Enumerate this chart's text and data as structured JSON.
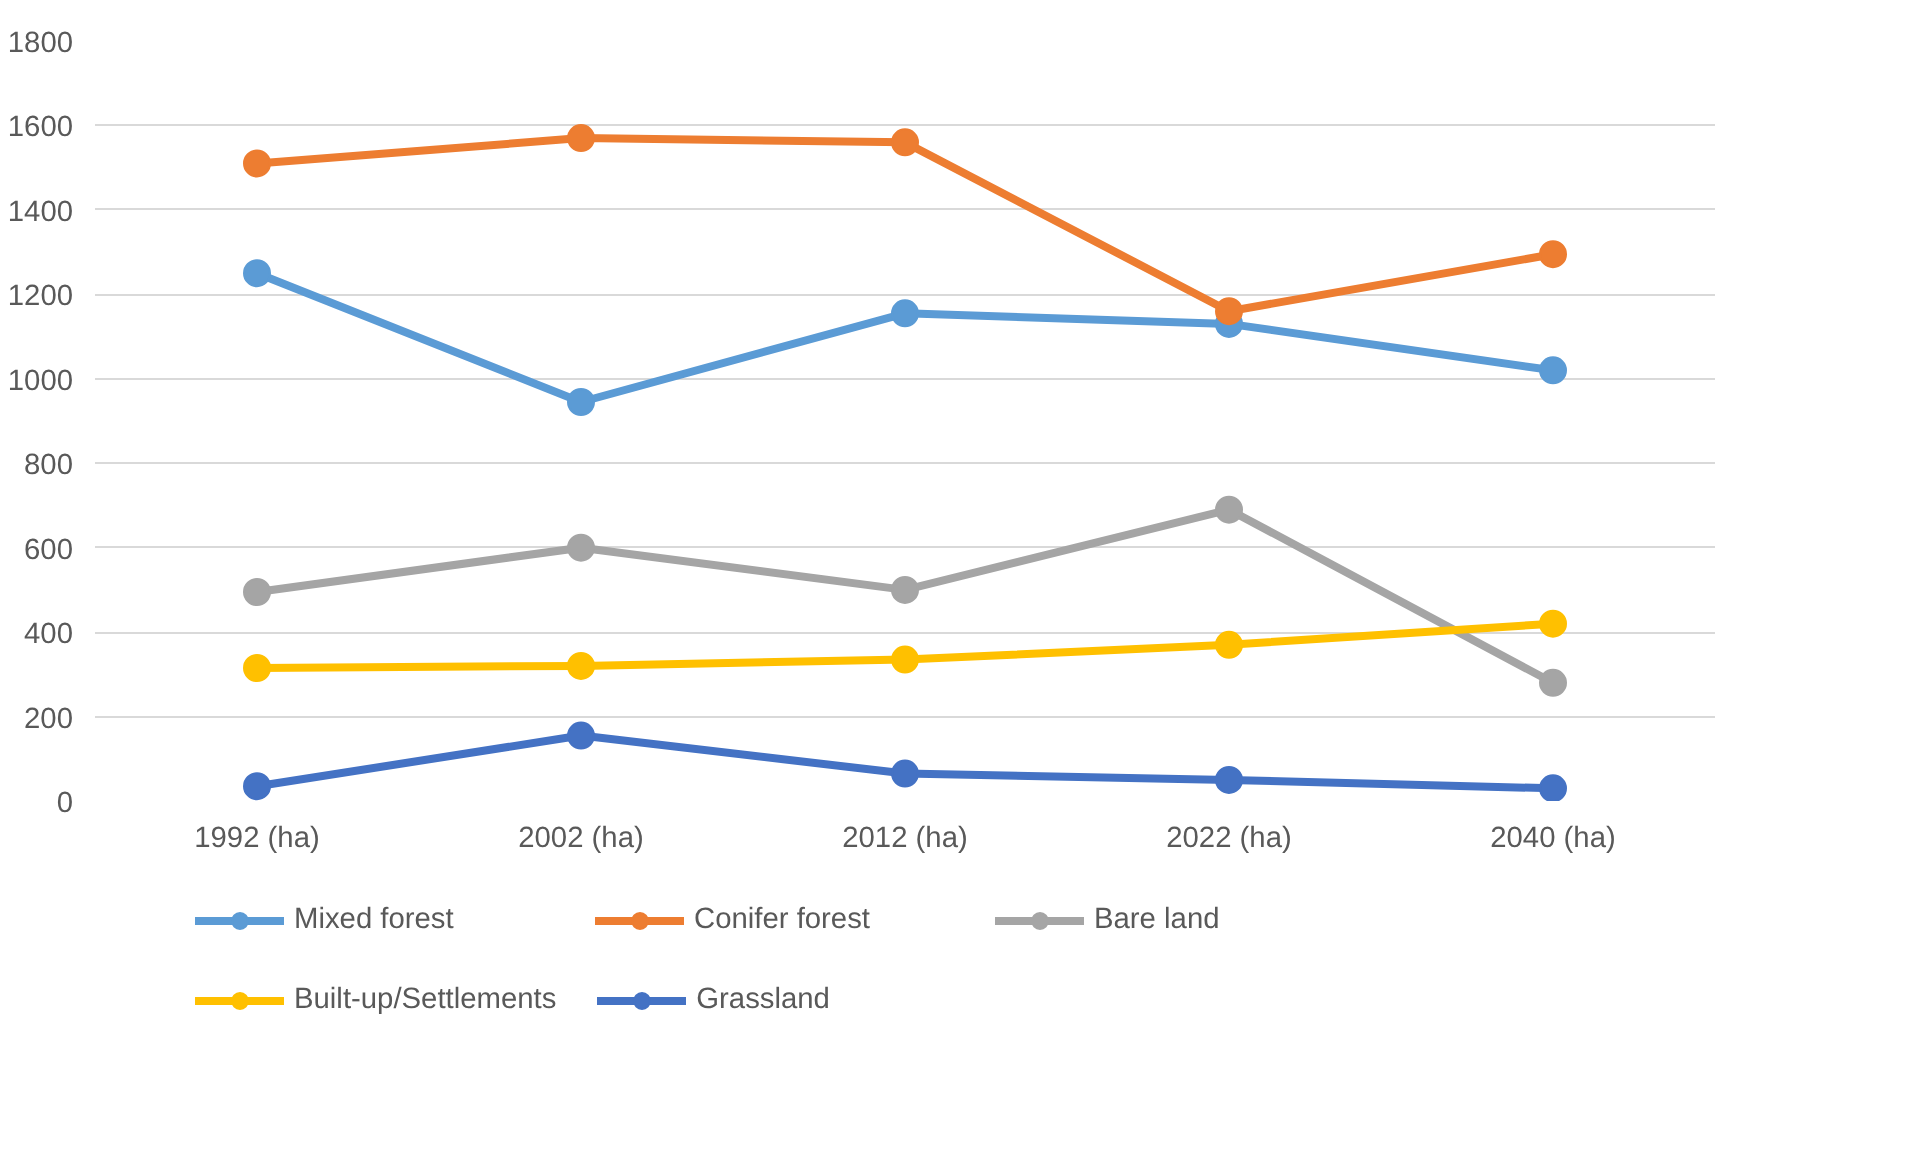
{
  "chart_data": {
    "type": "line",
    "categories": [
      "1992 (ha)",
      "2002 (ha)",
      "2012 (ha)",
      "2022 (ha)",
      "2040 (ha)"
    ],
    "series": [
      {
        "name": "Mixed forest",
        "color": "#5b9bd5",
        "values": [
          1250,
          945,
          1155,
          1130,
          1020
        ]
      },
      {
        "name": "Conifer forest",
        "color": "#ed7d31",
        "values": [
          1510,
          1570,
          1560,
          1160,
          1295
        ]
      },
      {
        "name": "Bare land",
        "color": "#a5a5a5",
        "values": [
          495,
          600,
          500,
          690,
          280
        ]
      },
      {
        "name": "Built-up/Settlements",
        "color": "#ffc000",
        "values": [
          315,
          320,
          335,
          370,
          420
        ]
      },
      {
        "name": "Grassland",
        "color": "#4472c4",
        "values": [
          35,
          155,
          65,
          50,
          30
        ]
      }
    ],
    "ylim": [
      0,
      1800
    ],
    "yticks": [
      0,
      200,
      400,
      600,
      800,
      1000,
      1200,
      1400,
      1600,
      1800
    ],
    "grid": "y",
    "legend": "bottom",
    "marker": "circle",
    "line_style": "solid"
  }
}
